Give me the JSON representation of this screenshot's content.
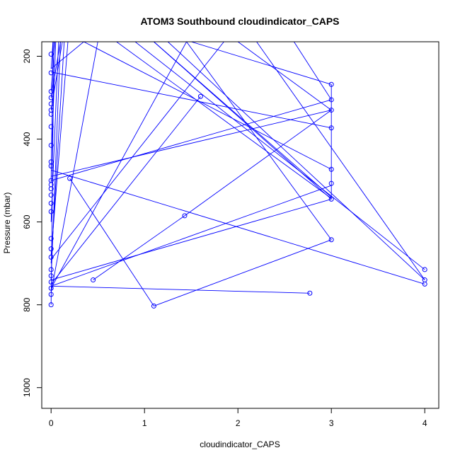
{
  "chart_data": {
    "type": "line",
    "title": "ATOM3 Southbound cloudindicator_CAPS",
    "xlabel": "cloudindicator_CAPS",
    "ylabel": "Pressure (mbar)",
    "xlim": [
      -0.1,
      4.15
    ],
    "ylim": [
      1050,
      165
    ],
    "y_reversed": true,
    "x_ticks": [
      "0",
      "1",
      "2",
      "3",
      "4"
    ],
    "y_ticks": [
      "200",
      "400",
      "600",
      "800",
      "1000"
    ],
    "grid": false,
    "legend": "none",
    "series": [
      {
        "color": "#0000ff",
        "points": [
          [
            0.0,
            195
          ],
          [
            0.0,
            240
          ],
          [
            0.0,
            285
          ],
          [
            0.0,
            300
          ],
          [
            0.0,
            315
          ],
          [
            0.0,
            330
          ],
          [
            0.0,
            340
          ],
          [
            0.0,
            370
          ],
          [
            0.0,
            415
          ],
          [
            0.0,
            455
          ],
          [
            0.0,
            465
          ],
          [
            0.0,
            500
          ],
          [
            0.0,
            510
          ],
          [
            0.0,
            520
          ],
          [
            0.0,
            535
          ],
          [
            0.0,
            555
          ],
          [
            0.0,
            575
          ],
          [
            0.0,
            640
          ],
          [
            0.0,
            665
          ],
          [
            0.0,
            685
          ],
          [
            0.0,
            715
          ],
          [
            0.0,
            730
          ],
          [
            0.0,
            745
          ],
          [
            0.0,
            760
          ],
          [
            0.0,
            775
          ],
          [
            0.0,
            800
          ],
          [
            0.2,
            495
          ],
          [
            0.45,
            740
          ],
          [
            1.1,
            803
          ],
          [
            1.43,
            585
          ],
          [
            1.6,
            297
          ],
          [
            2.77,
            772
          ],
          [
            3.0,
            268
          ],
          [
            3.0,
            305
          ],
          [
            3.0,
            330
          ],
          [
            3.0,
            373
          ],
          [
            3.0,
            473
          ],
          [
            3.0,
            507
          ],
          [
            3.0,
            545
          ],
          [
            3.0,
            643
          ],
          [
            4.0,
            715
          ],
          [
            4.0,
            740
          ],
          [
            4.0,
            750
          ]
        ],
        "segments": [
          [
            0.0,
            300,
            0.1,
            165
          ],
          [
            0.0,
            330,
            0.12,
            165
          ],
          [
            0.0,
            470,
            0.05,
            165
          ],
          [
            0.0,
            680,
            0.18,
            165
          ],
          [
            0.0,
            740,
            0.1,
            165
          ],
          [
            0.0,
            770,
            0.5,
            165
          ],
          [
            0.0,
            505,
            0.02,
            165
          ],
          [
            0.0,
            285,
            0.04,
            165
          ],
          [
            0.0,
            600,
            0.08,
            165
          ],
          [
            0.0,
            700,
            0.14,
            165
          ],
          [
            0.0,
            230,
            0.02,
            165
          ],
          [
            0.0,
            800,
            0.03,
            165
          ],
          [
            0.0,
            230,
            0.35,
            165
          ],
          [
            0.0,
            755,
            3.0,
            512
          ],
          [
            0.0,
            740,
            3.0,
            545
          ],
          [
            0.0,
            750,
            1.6,
            297
          ],
          [
            0.0,
            500,
            3.0,
            305
          ],
          [
            0.0,
            490,
            3.0,
            330
          ],
          [
            0.0,
            690,
            1.85,
            165
          ],
          [
            0.0,
            475,
            4.0,
            750
          ],
          [
            0.0,
            238,
            3.0,
            373
          ],
          [
            0.0,
            755,
            2.77,
            772
          ],
          [
            0.0,
            760,
            1.45,
            165
          ],
          [
            0.2,
            495,
            1.1,
            803
          ],
          [
            1.1,
            803,
            3.0,
            643
          ],
          [
            0.45,
            740,
            1.43,
            585
          ],
          [
            1.43,
            585,
            3.0,
            330
          ],
          [
            1.45,
            165,
            3.0,
            643
          ],
          [
            1.1,
            165,
            3.0,
            545
          ],
          [
            0.35,
            165,
            3.0,
            473
          ],
          [
            1.5,
            165,
            3.0,
            268
          ],
          [
            2.6,
            165,
            3.0,
            305
          ],
          [
            0.9,
            165,
            4.0,
            715
          ],
          [
            1.25,
            165,
            4.0,
            740
          ],
          [
            3.0,
            268,
            3.0,
            545
          ],
          [
            1.1,
            165,
            3.0,
            540
          ],
          [
            2.2,
            165,
            4.0,
            740
          ],
          [
            0.7,
            165,
            3.0,
            543
          ],
          [
            2.0,
            165,
            3.0,
            330
          ]
        ]
      }
    ]
  }
}
